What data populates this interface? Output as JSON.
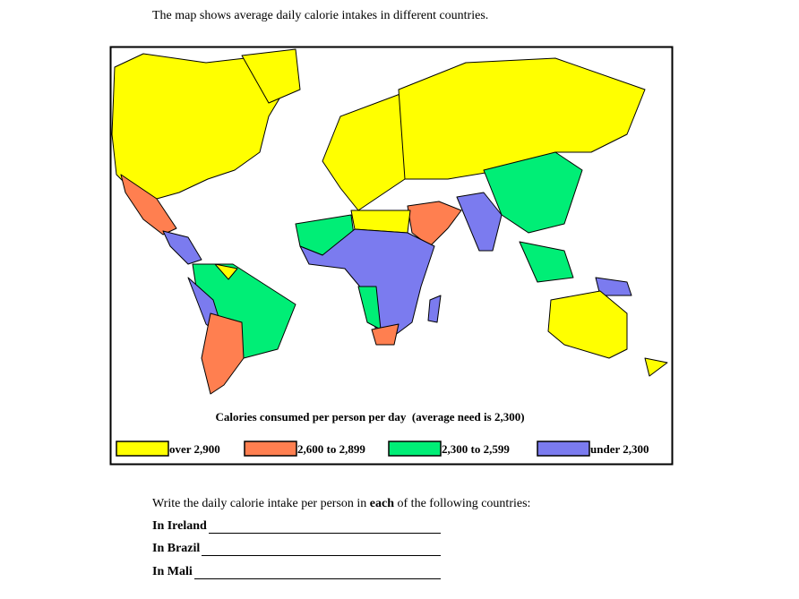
{
  "intro": "The map shows average daily calorie intakes in different countries.",
  "map": {
    "caption": "Calories consumed per person per day  (average need is 2,300)",
    "legend": [
      {
        "label": "over 2,900",
        "color": "#ffff00"
      },
      {
        "label": "2,600 to 2,899",
        "color": "#ff7f50"
      },
      {
        "label": "2,300 to 2,599",
        "color": "#00ee76"
      },
      {
        "label": "under 2,300",
        "color": "#7b7bef"
      }
    ]
  },
  "question": {
    "prompt_start": "Write the daily calorie intake per person in ",
    "prompt_bold": "each",
    "prompt_end": " of the following countries:",
    "items": [
      "In Ireland",
      "In Brazil",
      "In Mali"
    ]
  }
}
